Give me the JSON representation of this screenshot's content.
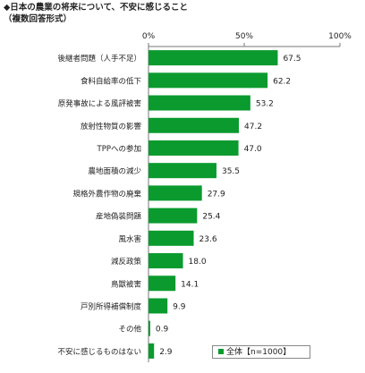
{
  "title_line1": "◆日本の農業の将来について、不安に感じること",
  "title_line2": "（複数回答形式）",
  "legend_label": "全体【n=1000】",
  "colors": {
    "bar": "#0a9a2e",
    "axis": "#777777",
    "grid": "#dddddd"
  },
  "chart_data": {
    "type": "bar",
    "orientation": "horizontal",
    "categories": [
      "後継者問題（人手不足）",
      "食料自給率の低下",
      "原発事故による風評被害",
      "放射性物質の影響",
      "TPPへの参加",
      "農地面積の減少",
      "規格外農作物の廃棄",
      "産地偽装問題",
      "風水害",
      "減反政策",
      "鳥獣被害",
      "戸別所得補償制度",
      "その他",
      "不安に感じるものはない"
    ],
    "series": [
      {
        "name": "全体【n=1000】",
        "values": [
          67.5,
          62.2,
          53.2,
          47.2,
          47.0,
          35.5,
          27.9,
          25.4,
          23.6,
          18.0,
          14.1,
          9.9,
          0.9,
          2.9
        ]
      }
    ],
    "value_labels": [
      "67.5",
      "62.2",
      "53.2",
      "47.2",
      "47.0",
      "35.5",
      "27.9",
      "25.4",
      "23.6",
      "18.0",
      "14.1",
      "9.9",
      "0.9",
      "2.9"
    ],
    "xlim": [
      0,
      100
    ],
    "ticks": [
      "0%",
      "50%",
      "100%"
    ],
    "tick_values": [
      0,
      50,
      100
    ],
    "legend_position": "bottom-right"
  }
}
